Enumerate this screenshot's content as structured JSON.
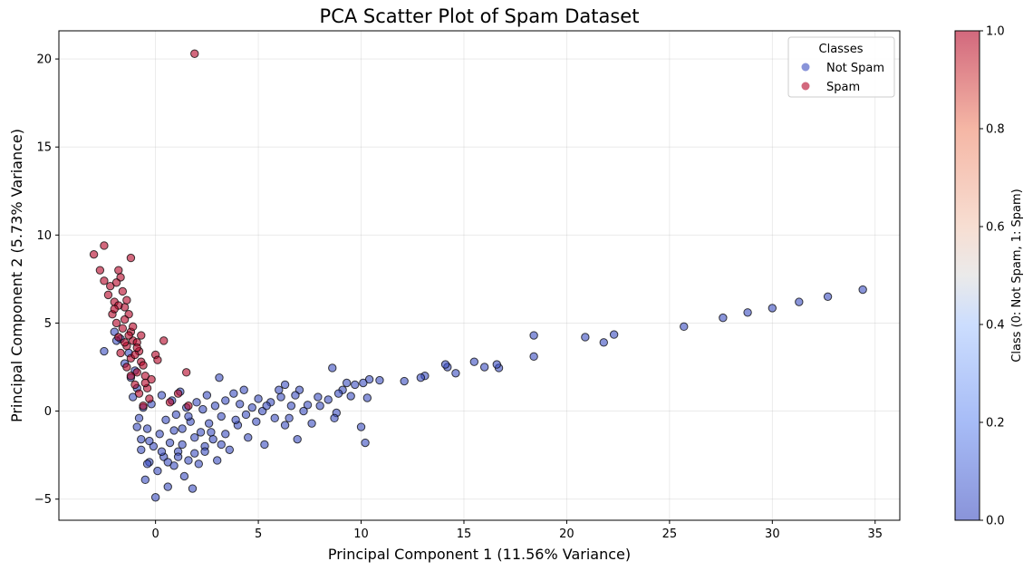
{
  "chart_data": {
    "type": "scatter",
    "title": "PCA Scatter Plot of Spam Dataset",
    "xlabel": "Principal Component 1 (11.56% Variance)",
    "ylabel": "Principal Component 2 (5.73% Variance)",
    "xlim": [
      -4.7,
      36.2
    ],
    "ylim": [
      -6.2,
      21.6
    ],
    "xticks": [
      0,
      5,
      10,
      15,
      20,
      25,
      30,
      35
    ],
    "yticks": [
      -5,
      0,
      5,
      10,
      15,
      20
    ],
    "grid": true,
    "legend": {
      "title": "Classes",
      "placement": "top-right"
    },
    "colorbar": {
      "label": "Class (0: Not Spam, 1: Spam)",
      "range": [
        0,
        1
      ],
      "ticks": [
        "0.0",
        "0.2",
        "0.4",
        "0.6",
        "0.8",
        "1.0"
      ],
      "colormap": "coolwarm"
    },
    "series": [
      {
        "name": "Not Spam",
        "class": 0,
        "color": "#3b4cc0",
        "points": [
          [
            34.4,
            6.9
          ],
          [
            32.7,
            6.5
          ],
          [
            31.3,
            6.2
          ],
          [
            30.0,
            5.85
          ],
          [
            28.8,
            5.6
          ],
          [
            27.6,
            5.3
          ],
          [
            25.7,
            4.8
          ],
          [
            22.3,
            4.35
          ],
          [
            21.8,
            3.9
          ],
          [
            20.9,
            4.2
          ],
          [
            18.4,
            4.3
          ],
          [
            18.4,
            3.1
          ],
          [
            16.7,
            2.45
          ],
          [
            16.6,
            2.65
          ],
          [
            16.0,
            2.5
          ],
          [
            15.5,
            2.8
          ],
          [
            14.6,
            2.15
          ],
          [
            14.2,
            2.5
          ],
          [
            14.1,
            2.65
          ],
          [
            13.1,
            2.0
          ],
          [
            12.9,
            1.9
          ],
          [
            12.1,
            1.7
          ],
          [
            10.9,
            1.75
          ],
          [
            10.4,
            1.8
          ],
          [
            10.3,
            0.75
          ],
          [
            10.1,
            1.6
          ],
          [
            10.2,
            -1.8
          ],
          [
            10.0,
            -0.9
          ],
          [
            9.7,
            1.5
          ],
          [
            9.5,
            0.85
          ],
          [
            9.3,
            1.6
          ],
          [
            9.1,
            1.2
          ],
          [
            8.8,
            -0.1
          ],
          [
            8.9,
            1.0
          ],
          [
            8.6,
            2.45
          ],
          [
            8.7,
            -0.4
          ],
          [
            8.4,
            0.65
          ],
          [
            8.0,
            0.3
          ],
          [
            7.9,
            0.8
          ],
          [
            7.6,
            -0.7
          ],
          [
            7.4,
            0.35
          ],
          [
            7.2,
            0.0
          ],
          [
            7.0,
            1.2
          ],
          [
            6.9,
            -1.6
          ],
          [
            6.8,
            0.9
          ],
          [
            6.6,
            0.3
          ],
          [
            6.5,
            -0.4
          ],
          [
            6.3,
            1.5
          ],
          [
            6.1,
            0.8
          ],
          [
            6.0,
            1.2
          ],
          [
            5.8,
            -0.4
          ],
          [
            5.6,
            0.5
          ],
          [
            5.3,
            -1.9
          ],
          [
            5.2,
            0.0
          ],
          [
            5.0,
            0.7
          ],
          [
            4.9,
            -0.6
          ],
          [
            4.7,
            0.2
          ],
          [
            4.5,
            -1.5
          ],
          [
            4.3,
            1.2
          ],
          [
            4.1,
            0.4
          ],
          [
            4.0,
            -0.8
          ],
          [
            3.8,
            1.0
          ],
          [
            3.6,
            -2.2
          ],
          [
            3.4,
            0.6
          ],
          [
            3.2,
            -0.3
          ],
          [
            3.1,
            1.9
          ],
          [
            3.0,
            -2.8
          ],
          [
            2.9,
            0.3
          ],
          [
            2.7,
            -1.2
          ],
          [
            2.5,
            0.9
          ],
          [
            2.4,
            -2.0
          ],
          [
            2.3,
            0.1
          ],
          [
            2.1,
            -3.0
          ],
          [
            2.0,
            0.5
          ],
          [
            1.9,
            -1.5
          ],
          [
            1.8,
            -4.4
          ],
          [
            1.7,
            -0.6
          ],
          [
            1.6,
            -2.8
          ],
          [
            1.5,
            0.2
          ],
          [
            1.4,
            -3.7
          ],
          [
            1.3,
            -1.0
          ],
          [
            1.2,
            1.1
          ],
          [
            1.1,
            -2.3
          ],
          [
            1.0,
            -0.2
          ],
          [
            0.9,
            -3.1
          ],
          [
            0.8,
            0.6
          ],
          [
            0.7,
            -1.8
          ],
          [
            0.6,
            -4.3
          ],
          [
            0.5,
            -0.5
          ],
          [
            0.4,
            -2.6
          ],
          [
            0.3,
            0.9
          ],
          [
            0.2,
            -1.3
          ],
          [
            0.1,
            -3.4
          ],
          [
            0.0,
            -4.9
          ],
          [
            -0.1,
            -2.0
          ],
          [
            -0.2,
            0.4
          ],
          [
            -0.3,
            -2.9
          ],
          [
            -0.4,
            -1.0
          ],
          [
            -0.5,
            -3.9
          ],
          [
            -0.6,
            0.2
          ],
          [
            -0.7,
            -1.6
          ],
          [
            -0.8,
            -0.4
          ],
          [
            -0.9,
            1.3
          ],
          [
            -1.0,
            2.3
          ],
          [
            -1.1,
            0.8
          ],
          [
            -1.2,
            1.9
          ],
          [
            -1.3,
            3.3
          ],
          [
            -1.5,
            2.7
          ],
          [
            -1.7,
            4.1
          ],
          [
            -1.9,
            4.0
          ],
          [
            -2.0,
            4.5
          ],
          [
            -2.5,
            3.4
          ],
          [
            -0.9,
            -0.9
          ],
          [
            -0.7,
            -2.2
          ],
          [
            -0.3,
            -1.7
          ],
          [
            0.6,
            -2.9
          ],
          [
            1.9,
            -2.4
          ],
          [
            2.8,
            -1.6
          ],
          [
            3.4,
            -1.3
          ],
          [
            4.4,
            -0.2
          ],
          [
            5.4,
            0.3
          ],
          [
            6.3,
            -0.8
          ],
          [
            1.3,
            -1.9
          ],
          [
            2.6,
            -0.7
          ],
          [
            0.9,
            -1.1
          ],
          [
            1.6,
            -0.3
          ],
          [
            3.9,
            -0.5
          ],
          [
            2.2,
            -1.2
          ],
          [
            0.3,
            -2.3
          ],
          [
            -0.4,
            -3.0
          ],
          [
            1.1,
            -2.6
          ],
          [
            2.4,
            -2.3
          ],
          [
            3.2,
            -1.9
          ]
        ]
      },
      {
        "name": "Spam",
        "class": 1,
        "color": "#b40426",
        "points": [
          [
            1.9,
            20.3
          ],
          [
            -3.0,
            8.9
          ],
          [
            -2.5,
            9.4
          ],
          [
            -1.2,
            8.7
          ],
          [
            -2.7,
            8.0
          ],
          [
            -1.8,
            8.0
          ],
          [
            -1.7,
            7.6
          ],
          [
            -2.5,
            7.4
          ],
          [
            -2.2,
            7.1
          ],
          [
            -1.9,
            7.3
          ],
          [
            -2.3,
            6.6
          ],
          [
            -1.6,
            6.8
          ],
          [
            -2.0,
            6.2
          ],
          [
            -1.5,
            5.9
          ],
          [
            -2.1,
            5.5
          ],
          [
            -1.9,
            5.0
          ],
          [
            -1.3,
            5.5
          ],
          [
            -1.6,
            4.7
          ],
          [
            -1.2,
            4.5
          ],
          [
            -1.8,
            4.2
          ],
          [
            -1.1,
            4.0
          ],
          [
            -1.4,
            3.7
          ],
          [
            -0.9,
            3.9
          ],
          [
            -1.7,
            3.3
          ],
          [
            -0.8,
            3.4
          ],
          [
            -1.2,
            3.0
          ],
          [
            -0.7,
            2.8
          ],
          [
            -1.4,
            2.5
          ],
          [
            -0.9,
            2.2
          ],
          [
            -0.5,
            2.0
          ],
          [
            -1.0,
            1.5
          ],
          [
            -0.4,
            1.3
          ],
          [
            -0.8,
            1.0
          ],
          [
            -0.3,
            0.7
          ],
          [
            -0.6,
            0.3
          ],
          [
            0.4,
            4.0
          ],
          [
            1.5,
            2.2
          ],
          [
            0.0,
            3.2
          ],
          [
            0.1,
            2.9
          ],
          [
            1.1,
            1.0
          ],
          [
            0.7,
            0.5
          ],
          [
            -0.2,
            1.8
          ],
          [
            1.6,
            0.3
          ],
          [
            -1.5,
            5.2
          ],
          [
            -1.1,
            4.8
          ],
          [
            -1.3,
            4.3
          ],
          [
            -0.9,
            3.6
          ],
          [
            -1.5,
            3.9
          ],
          [
            -1.0,
            3.2
          ],
          [
            -0.6,
            2.6
          ],
          [
            -1.2,
            2.0
          ],
          [
            -0.5,
            1.6
          ],
          [
            -1.8,
            6.0
          ],
          [
            -1.4,
            6.3
          ],
          [
            -2.0,
            5.8
          ],
          [
            -0.7,
            4.3
          ]
        ]
      }
    ]
  }
}
